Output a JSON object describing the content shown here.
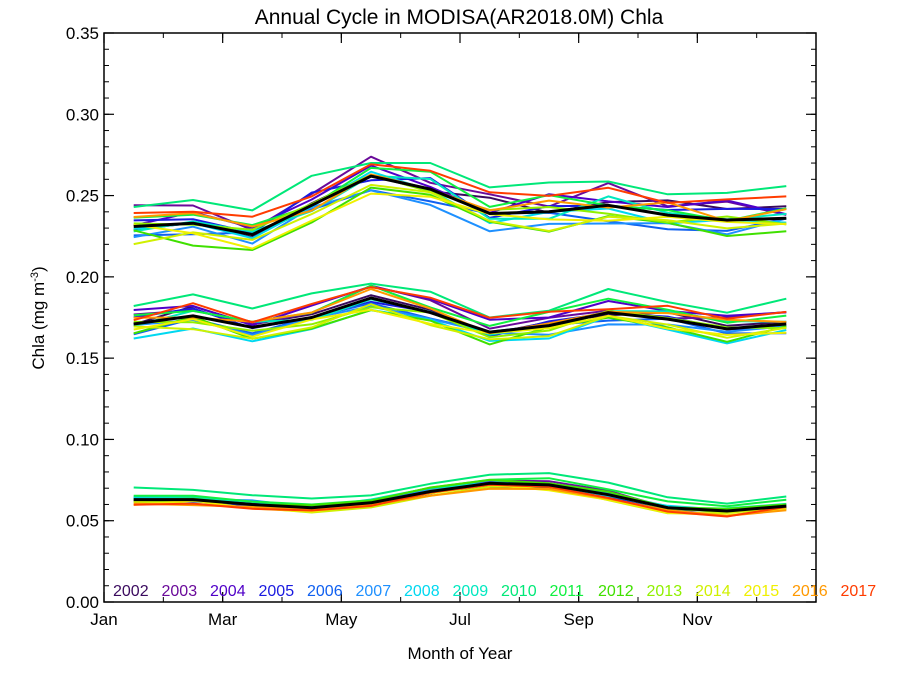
{
  "chart_data": {
    "type": "line",
    "title": "Annual Cycle in MODISA(AR2018.0M) Chla",
    "xlabel": "Month of Year",
    "ylabel": "Chla (mg m",
    "ylabel_sup": "-3",
    "ylabel_close": ")",
    "xlim": [
      0,
      12
    ],
    "ylim": [
      0.0,
      0.35
    ],
    "x_ticks": [
      {
        "label": "Jan",
        "value": 0
      },
      {
        "label": "Mar",
        "value": 2
      },
      {
        "label": "May",
        "value": 4
      },
      {
        "label": "Jul",
        "value": 6
      },
      {
        "label": "Sep",
        "value": 8
      },
      {
        "label": "Nov",
        "value": 10
      }
    ],
    "y_ticks": [
      "0.00",
      "0.05",
      "0.10",
      "0.15",
      "0.20",
      "0.25",
      "0.30",
      "0.35"
    ],
    "grid": false,
    "legend_position": "bottom",
    "mean_color": "#000000",
    "groups": [
      {
        "mean": [
          0.231,
          0.233,
          0.226,
          0.244,
          0.262,
          0.254,
          0.239,
          0.24,
          0.244,
          0.238,
          0.235,
          0.236
        ],
        "spread": 0.012
      },
      {
        "mean": [
          0.171,
          0.176,
          0.169,
          0.175,
          0.187,
          0.178,
          0.166,
          0.17,
          0.178,
          0.174,
          0.168,
          0.171
        ],
        "spread": 0.008
      },
      {
        "mean": [
          0.063,
          0.063,
          0.06,
          0.058,
          0.061,
          0.068,
          0.073,
          0.072,
          0.066,
          0.058,
          0.056,
          0.059
        ],
        "spread": 0.003
      }
    ],
    "series": [
      {
        "name": "2002",
        "color": "#3a0a5e",
        "offset": [
          0.004,
          0.002,
          -0.001
        ],
        "start_month": 6
      },
      {
        "name": "2003",
        "color": "#6a0a9a",
        "offset": [
          0.008,
          0.004,
          0.001
        ]
      },
      {
        "name": "2004",
        "color": "#5000c8",
        "offset": [
          0.006,
          0.005,
          0.0
        ]
      },
      {
        "name": "2005",
        "color": "#1a1ae0",
        "offset": [
          0.003,
          0.001,
          -0.001
        ]
      },
      {
        "name": "2006",
        "color": "#1060f0",
        "offset": [
          -0.004,
          -0.003,
          0.0
        ]
      },
      {
        "name": "2007",
        "color": "#1e90ff",
        "offset": [
          -0.006,
          -0.004,
          0.001
        ]
      },
      {
        "name": "2008",
        "color": "#00d8f0",
        "offset": [
          -0.003,
          -0.005,
          0.0
        ]
      },
      {
        "name": "2009",
        "color": "#00e8c0",
        "offset": [
          0.001,
          0.002,
          0.001
        ]
      },
      {
        "name": "2010",
        "color": "#00e878",
        "offset": [
          0.014,
          0.012,
          0.006
        ]
      },
      {
        "name": "2011",
        "color": "#10f040",
        "offset": [
          0.005,
          0.006,
          0.003
        ]
      },
      {
        "name": "2012",
        "color": "#40e000",
        "offset": [
          -0.008,
          -0.004,
          0.001
        ]
      },
      {
        "name": "2013",
        "color": "#90f000",
        "offset": [
          -0.002,
          -0.002,
          -0.001
        ]
      },
      {
        "name": "2014",
        "color": "#d0f000",
        "offset": [
          -0.007,
          -0.005,
          -0.002
        ]
      },
      {
        "name": "2015",
        "color": "#f0f000",
        "offset": [
          -0.005,
          -0.004,
          -0.002
        ]
      },
      {
        "name": "2016",
        "color": "#ff9900",
        "offset": [
          0.002,
          0.002,
          -0.002
        ]
      },
      {
        "name": "2017",
        "color": "#ff3c00",
        "offset": [
          0.009,
          0.006,
          -0.002
        ]
      }
    ]
  }
}
